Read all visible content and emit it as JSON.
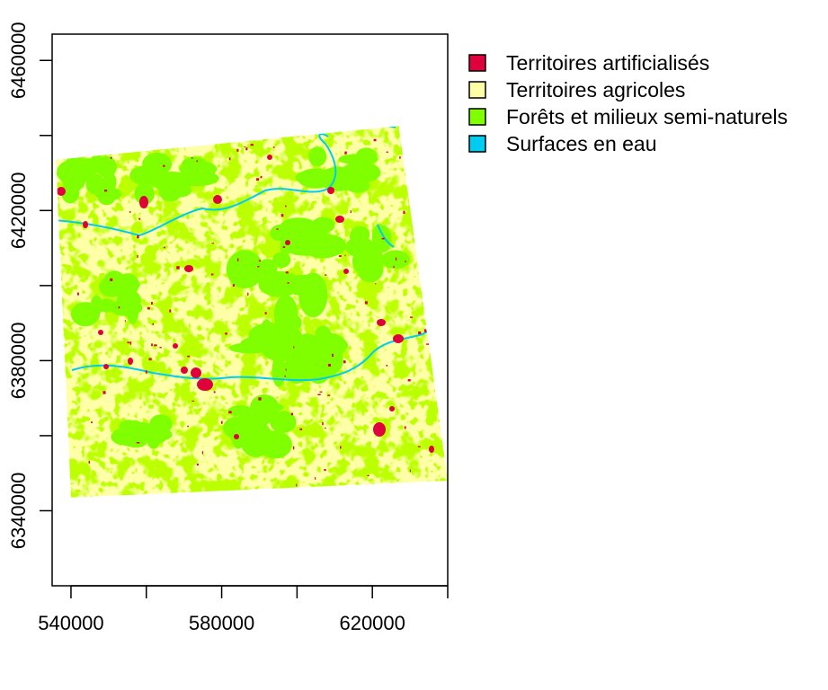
{
  "map": {
    "x_ticks": [
      {
        "value": 540000,
        "label": "540000"
      },
      {
        "value": 560000,
        "label": ""
      },
      {
        "value": 580000,
        "label": "580000"
      },
      {
        "value": 600000,
        "label": ""
      },
      {
        "value": 620000,
        "label": "620000"
      },
      {
        "value": 640000,
        "label": ""
      }
    ],
    "y_ticks": [
      {
        "value": 6340000,
        "label": "6340000"
      },
      {
        "value": 6360000,
        "label": ""
      },
      {
        "value": 6380000,
        "label": "6380000"
      },
      {
        "value": 6400000,
        "label": ""
      },
      {
        "value": 6420000,
        "label": "6420000"
      },
      {
        "value": 6440000,
        "label": ""
      },
      {
        "value": 6460000,
        "label": "6460000"
      }
    ],
    "xlim": [
      535000,
      640000
    ],
    "ylim": [
      6320000,
      6467000
    ],
    "raster_corners": [
      [
        536000,
        6433500
      ],
      [
        627000,
        6442500
      ],
      [
        640000,
        6348000
      ],
      [
        540000,
        6343500
      ]
    ],
    "legend": {
      "placement": "top-right, outside plot",
      "items": [
        {
          "label": "Territoires artificialisés",
          "color": "#e0003c"
        },
        {
          "label": "Territoires agricoles",
          "color": "#ffffa8"
        },
        {
          "label": "Forêts et milieux semi-naturels",
          "color": "#80ff00"
        },
        {
          "label": "Surfaces en eau",
          "color": "#00ccf2"
        }
      ]
    }
  }
}
